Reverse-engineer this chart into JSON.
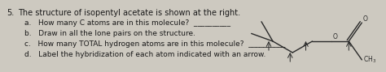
{
  "background_color": "#cdc9c0",
  "number": "5.",
  "main_text": "The structure of isopentyl acetate is shown at the right.",
  "items": [
    "a.   How many C atoms are in this molecule?  __________",
    "b.   Draw in all the lone pairs on the structure.",
    "c.   How many TOTAL hydrogen atoms are in this molecule?  __________",
    "d.   Label the hybridization of each atom indicated with an arrow."
  ],
  "font_size_main": 7.0,
  "font_size_items": 6.5,
  "text_color": "#1a1a1a",
  "mol_color": "#2a2a2a"
}
